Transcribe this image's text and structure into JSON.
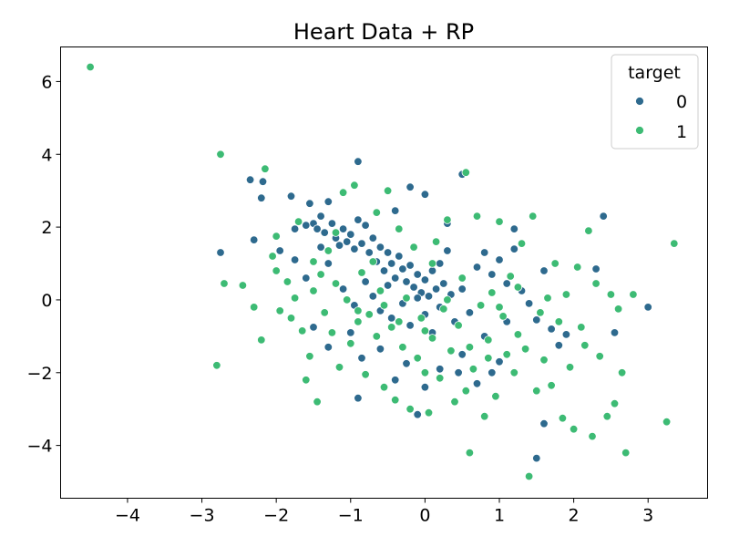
{
  "chart_data": {
    "type": "scatter",
    "title": "Heart Data + RP",
    "xlabel": "",
    "ylabel": "",
    "xlim": [
      -4.9,
      3.8
    ],
    "ylim": [
      -5.45,
      6.95
    ],
    "xticks": [
      -4,
      -3,
      -2,
      -1,
      0,
      1,
      2,
      3
    ],
    "xtick_labels": [
      "−4",
      "−3",
      "−2",
      "−1",
      "0",
      "1",
      "2",
      "3"
    ],
    "yticks": [
      -4,
      -2,
      0,
      2,
      4,
      6
    ],
    "ytick_labels": [
      "−4",
      "−2",
      "0",
      "2",
      "4",
      "6"
    ],
    "grid": false,
    "legend": {
      "title": "target",
      "placement": "top-right"
    },
    "series": [
      {
        "name": "0",
        "color": "#2e6a8e",
        "points": [
          [
            -2.75,
            1.3
          ],
          [
            -2.35,
            3.3
          ],
          [
            -2.3,
            1.65
          ],
          [
            -2.18,
            3.25
          ],
          [
            -2.2,
            2.8
          ],
          [
            -1.95,
            1.35
          ],
          [
            -1.8,
            2.85
          ],
          [
            -1.75,
            1.95
          ],
          [
            -1.6,
            2.05
          ],
          [
            -1.55,
            2.65
          ],
          [
            -1.5,
            2.1
          ],
          [
            -1.45,
            1.95
          ],
          [
            -1.4,
            2.3
          ],
          [
            -1.35,
            1.85
          ],
          [
            -1.3,
            2.7
          ],
          [
            -1.25,
            2.1
          ],
          [
            -1.2,
            1.7
          ],
          [
            -1.15,
            1.5
          ],
          [
            -1.1,
            1.95
          ],
          [
            -1.05,
            1.6
          ],
          [
            -1.0,
            1.8
          ],
          [
            -0.95,
            1.4
          ],
          [
            -0.9,
            2.2
          ],
          [
            -0.85,
            1.55
          ],
          [
            -0.8,
            2.05
          ],
          [
            -0.75,
            1.3
          ],
          [
            -0.7,
            1.7
          ],
          [
            -0.65,
            1.05
          ],
          [
            -0.6,
            1.45
          ],
          [
            -0.55,
            0.8
          ],
          [
            -0.5,
            1.3
          ],
          [
            -0.45,
            1.0
          ],
          [
            -0.4,
            0.6
          ],
          [
            -0.35,
            1.2
          ],
          [
            -0.3,
            0.85
          ],
          [
            -0.25,
            0.5
          ],
          [
            -0.2,
            0.95
          ],
          [
            -0.15,
            0.35
          ],
          [
            -0.1,
            0.7
          ],
          [
            -0.05,
            0.2
          ],
          [
            0.0,
            0.55
          ],
          [
            0.05,
            0.1
          ],
          [
            0.1,
            0.8
          ],
          [
            0.15,
            0.3
          ],
          [
            0.2,
            1.0
          ],
          [
            0.25,
            0.45
          ],
          [
            0.3,
            1.35
          ],
          [
            0.35,
            0.15
          ],
          [
            -0.9,
            3.8
          ],
          [
            -0.2,
            3.1
          ],
          [
            0.5,
            3.45
          ],
          [
            0.0,
            2.9
          ],
          [
            -0.4,
            2.45
          ],
          [
            0.3,
            2.1
          ],
          [
            -1.3,
            1.0
          ],
          [
            -1.1,
            0.3
          ],
          [
            -0.95,
            -0.15
          ],
          [
            -0.8,
            0.5
          ],
          [
            -0.7,
            0.1
          ],
          [
            -0.6,
            -0.3
          ],
          [
            -0.5,
            0.4
          ],
          [
            -0.45,
            -0.5
          ],
          [
            -0.3,
            -0.1
          ],
          [
            -0.2,
            -0.7
          ],
          [
            -0.1,
            0.05
          ],
          [
            0.0,
            -0.4
          ],
          [
            0.1,
            -0.9
          ],
          [
            0.2,
            -0.2
          ],
          [
            0.4,
            -0.6
          ],
          [
            0.5,
            0.3
          ],
          [
            0.6,
            -0.35
          ],
          [
            0.7,
            0.9
          ],
          [
            0.8,
            1.3
          ],
          [
            0.9,
            0.7
          ],
          [
            1.0,
            1.1
          ],
          [
            1.1,
            0.45
          ],
          [
            1.2,
            1.4
          ],
          [
            1.3,
            0.25
          ],
          [
            1.4,
            -0.1
          ],
          [
            1.5,
            -0.55
          ],
          [
            1.6,
            0.8
          ],
          [
            1.7,
            -0.8
          ],
          [
            1.8,
            -1.25
          ],
          [
            1.9,
            -0.95
          ],
          [
            2.3,
            0.85
          ],
          [
            2.4,
            2.3
          ],
          [
            2.55,
            -0.9
          ],
          [
            3.0,
            -0.2
          ],
          [
            -1.0,
            -0.9
          ],
          [
            -0.85,
            -1.6
          ],
          [
            -0.6,
            -1.35
          ],
          [
            -0.4,
            -2.2
          ],
          [
            -0.25,
            -1.75
          ],
          [
            0.0,
            -2.4
          ],
          [
            -0.1,
            -3.15
          ],
          [
            0.2,
            -1.9
          ],
          [
            0.5,
            -1.5
          ],
          [
            0.8,
            -1.0
          ],
          [
            1.0,
            -1.7
          ],
          [
            1.1,
            -0.6
          ],
          [
            1.5,
            -4.35
          ],
          [
            1.6,
            -3.4
          ],
          [
            -0.9,
            -2.7
          ],
          [
            -1.3,
            -1.3
          ],
          [
            -1.5,
            -0.75
          ],
          [
            -1.6,
            0.6
          ],
          [
            -1.4,
            1.45
          ],
          [
            -1.75,
            1.1
          ],
          [
            0.7,
            -2.3
          ],
          [
            0.45,
            -2.0
          ],
          [
            0.9,
            -2.0
          ],
          [
            1.2,
            1.95
          ]
        ]
      },
      {
        "name": "1",
        "color": "#3dbb74",
        "points": [
          [
            -4.5,
            6.4
          ],
          [
            -2.75,
            4.0
          ],
          [
            -2.8,
            -1.8
          ],
          [
            -2.7,
            0.45
          ],
          [
            -2.45,
            0.4
          ],
          [
            -2.3,
            -0.2
          ],
          [
            -2.2,
            -1.1
          ],
          [
            -2.15,
            3.6
          ],
          [
            -2.0,
            1.75
          ],
          [
            -2.0,
            0.8
          ],
          [
            -1.95,
            -0.3
          ],
          [
            -1.85,
            0.5
          ],
          [
            -1.8,
            -0.5
          ],
          [
            -1.7,
            2.15
          ],
          [
            -1.65,
            -0.85
          ],
          [
            -1.6,
            -2.2
          ],
          [
            -1.55,
            -1.55
          ],
          [
            -1.5,
            0.25
          ],
          [
            -1.45,
            -2.8
          ],
          [
            -1.4,
            0.7
          ],
          [
            -1.35,
            -0.35
          ],
          [
            -1.3,
            1.35
          ],
          [
            -1.25,
            -0.9
          ],
          [
            -1.2,
            0.45
          ],
          [
            -1.15,
            -1.85
          ],
          [
            -1.1,
            2.95
          ],
          [
            -1.05,
            0.0
          ],
          [
            -1.0,
            -1.2
          ],
          [
            -0.95,
            3.15
          ],
          [
            -0.9,
            -0.6
          ],
          [
            -0.85,
            0.75
          ],
          [
            -0.8,
            -2.05
          ],
          [
            -0.75,
            -0.4
          ],
          [
            -0.7,
            1.05
          ],
          [
            -0.65,
            -1.0
          ],
          [
            -0.6,
            0.25
          ],
          [
            -0.55,
            -2.4
          ],
          [
            -0.5,
            3.0
          ],
          [
            -0.45,
            -0.75
          ],
          [
            -0.4,
            -2.75
          ],
          [
            -0.35,
            1.95
          ],
          [
            -0.3,
            -1.3
          ],
          [
            -0.25,
            0.05
          ],
          [
            -0.2,
            -3.0
          ],
          [
            -0.15,
            1.45
          ],
          [
            -0.1,
            -1.6
          ],
          [
            -0.05,
            -0.5
          ],
          [
            0.0,
            -2.0
          ],
          [
            0.05,
            -3.1
          ],
          [
            0.1,
            -1.05
          ],
          [
            0.15,
            1.6
          ],
          [
            0.2,
            -2.15
          ],
          [
            0.25,
            -0.25
          ],
          [
            0.3,
            2.2
          ],
          [
            0.35,
            -1.4
          ],
          [
            0.4,
            -2.8
          ],
          [
            0.45,
            -0.7
          ],
          [
            0.5,
            0.6
          ],
          [
            0.55,
            -2.5
          ],
          [
            0.6,
            -4.2
          ],
          [
            0.65,
            -1.9
          ],
          [
            0.7,
            2.3
          ],
          [
            0.75,
            -0.15
          ],
          [
            0.8,
            -3.2
          ],
          [
            0.85,
            -1.1
          ],
          [
            0.9,
            0.2
          ],
          [
            0.95,
            -2.65
          ],
          [
            1.0,
            2.15
          ],
          [
            1.05,
            -0.45
          ],
          [
            1.1,
            -1.5
          ],
          [
            1.15,
            0.65
          ],
          [
            1.2,
            -2.0
          ],
          [
            1.25,
            -0.95
          ],
          [
            1.3,
            1.55
          ],
          [
            1.35,
            -1.35
          ],
          [
            1.4,
            -4.85
          ],
          [
            1.45,
            2.3
          ],
          [
            1.5,
            -2.5
          ],
          [
            1.55,
            -0.35
          ],
          [
            1.6,
            -1.65
          ],
          [
            1.65,
            0.05
          ],
          [
            1.7,
            -2.35
          ],
          [
            1.75,
            1.0
          ],
          [
            1.8,
            -0.6
          ],
          [
            1.85,
            -3.25
          ],
          [
            1.9,
            0.15
          ],
          [
            1.95,
            -1.85
          ],
          [
            2.0,
            -3.55
          ],
          [
            2.05,
            0.9
          ],
          [
            2.1,
            -0.75
          ],
          [
            2.15,
            -1.25
          ],
          [
            2.2,
            1.9
          ],
          [
            2.25,
            -3.75
          ],
          [
            2.3,
            0.45
          ],
          [
            2.35,
            -1.55
          ],
          [
            2.45,
            -3.2
          ],
          [
            2.5,
            0.15
          ],
          [
            2.55,
            -2.85
          ],
          [
            2.6,
            -0.25
          ],
          [
            2.65,
            -2.0
          ],
          [
            2.7,
            -4.2
          ],
          [
            2.8,
            0.15
          ],
          [
            3.25,
            -3.35
          ],
          [
            3.35,
            1.55
          ],
          [
            0.55,
            3.5
          ],
          [
            -1.5,
            1.05
          ],
          [
            -1.2,
            1.85
          ],
          [
            -0.65,
            2.4
          ],
          [
            0.1,
            1.0
          ],
          [
            0.3,
            0.0
          ],
          [
            -0.55,
            -0.15
          ],
          [
            -0.9,
            -0.3
          ],
          [
            -0.35,
            -0.6
          ],
          [
            0.0,
            -0.85
          ],
          [
            0.6,
            -1.3
          ],
          [
            0.85,
            -1.6
          ],
          [
            1.0,
            -0.2
          ],
          [
            1.25,
            0.35
          ],
          [
            -1.75,
            0.05
          ],
          [
            -2.05,
            1.2
          ]
        ]
      }
    ]
  }
}
